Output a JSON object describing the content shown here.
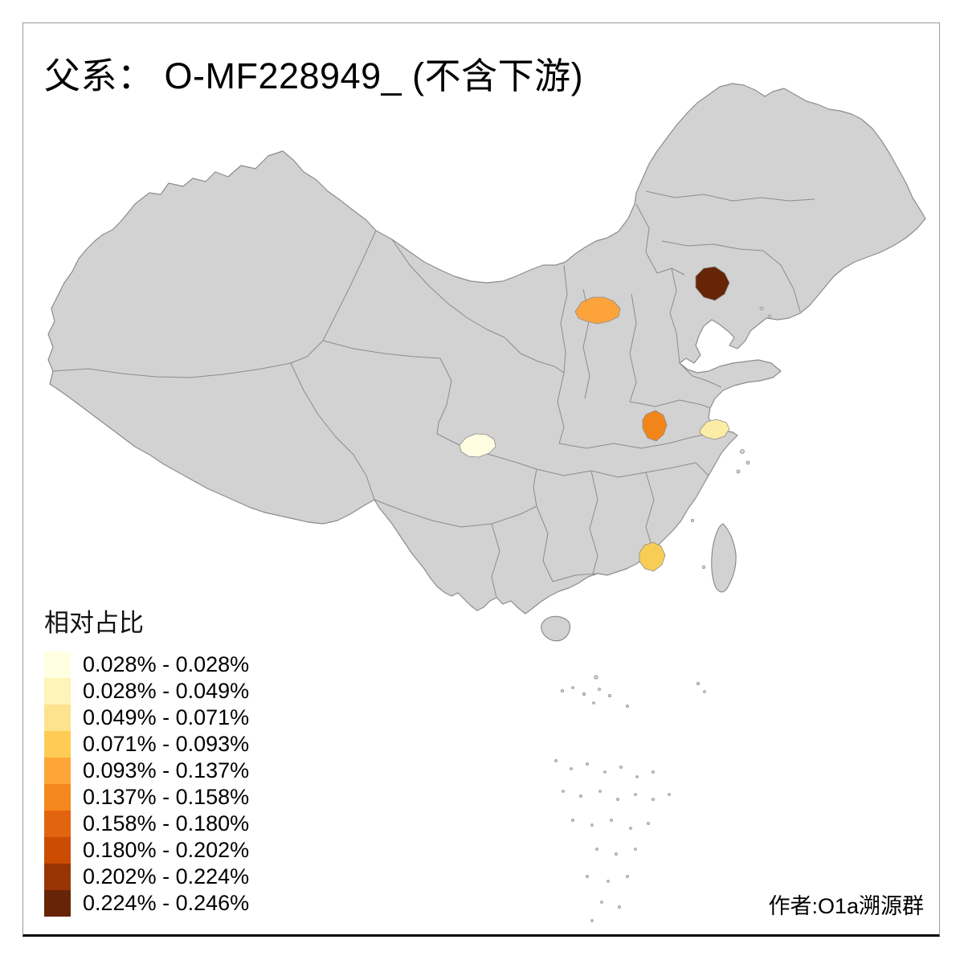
{
  "title": "父系： O-MF228949_ (不含下游)",
  "author": "作者:O1a溯源群",
  "legend": {
    "title": "相对占比",
    "items": [
      {
        "range": "0.028% - 0.028%",
        "color": "#FFFFE2"
      },
      {
        "range": "0.028% - 0.049%",
        "color": "#FEF3B9"
      },
      {
        "range": "0.049% - 0.071%",
        "color": "#FEE38E"
      },
      {
        "range": "0.071% - 0.093%",
        "color": "#FECC54"
      },
      {
        "range": "0.093% - 0.137%",
        "color": "#FDA637"
      },
      {
        "range": "0.137% - 0.158%",
        "color": "#F5871F"
      },
      {
        "range": "0.158% - 0.180%",
        "color": "#E3640E"
      },
      {
        "range": "0.180% - 0.202%",
        "color": "#CC4C02"
      },
      {
        "range": "0.202% - 0.224%",
        "color": "#993404"
      },
      {
        "range": "0.224% - 0.246%",
        "color": "#662506"
      }
    ]
  },
  "map": {
    "land_color": "#D2D2D2",
    "border_color": "#8C8C8C",
    "background_color": "#FFFFFF",
    "highlighted_regions": [
      {
        "id": "region-northeast",
        "color": "#662506",
        "bin": "0.224% - 0.246%"
      },
      {
        "id": "region-north",
        "color": "#FCA33C",
        "bin": "0.093% - 0.137%"
      },
      {
        "id": "region-central-east",
        "color": "#F28519",
        "bin": "0.137% - 0.158%"
      },
      {
        "id": "region-east-coast",
        "color": "#FCEDA6",
        "bin": "0.028% - 0.049%"
      },
      {
        "id": "region-southwest",
        "color": "#FFFEE2",
        "bin": "0.028% - 0.028%"
      },
      {
        "id": "region-south",
        "color": "#F7CD55",
        "bin": "0.071% - 0.093%"
      }
    ]
  }
}
